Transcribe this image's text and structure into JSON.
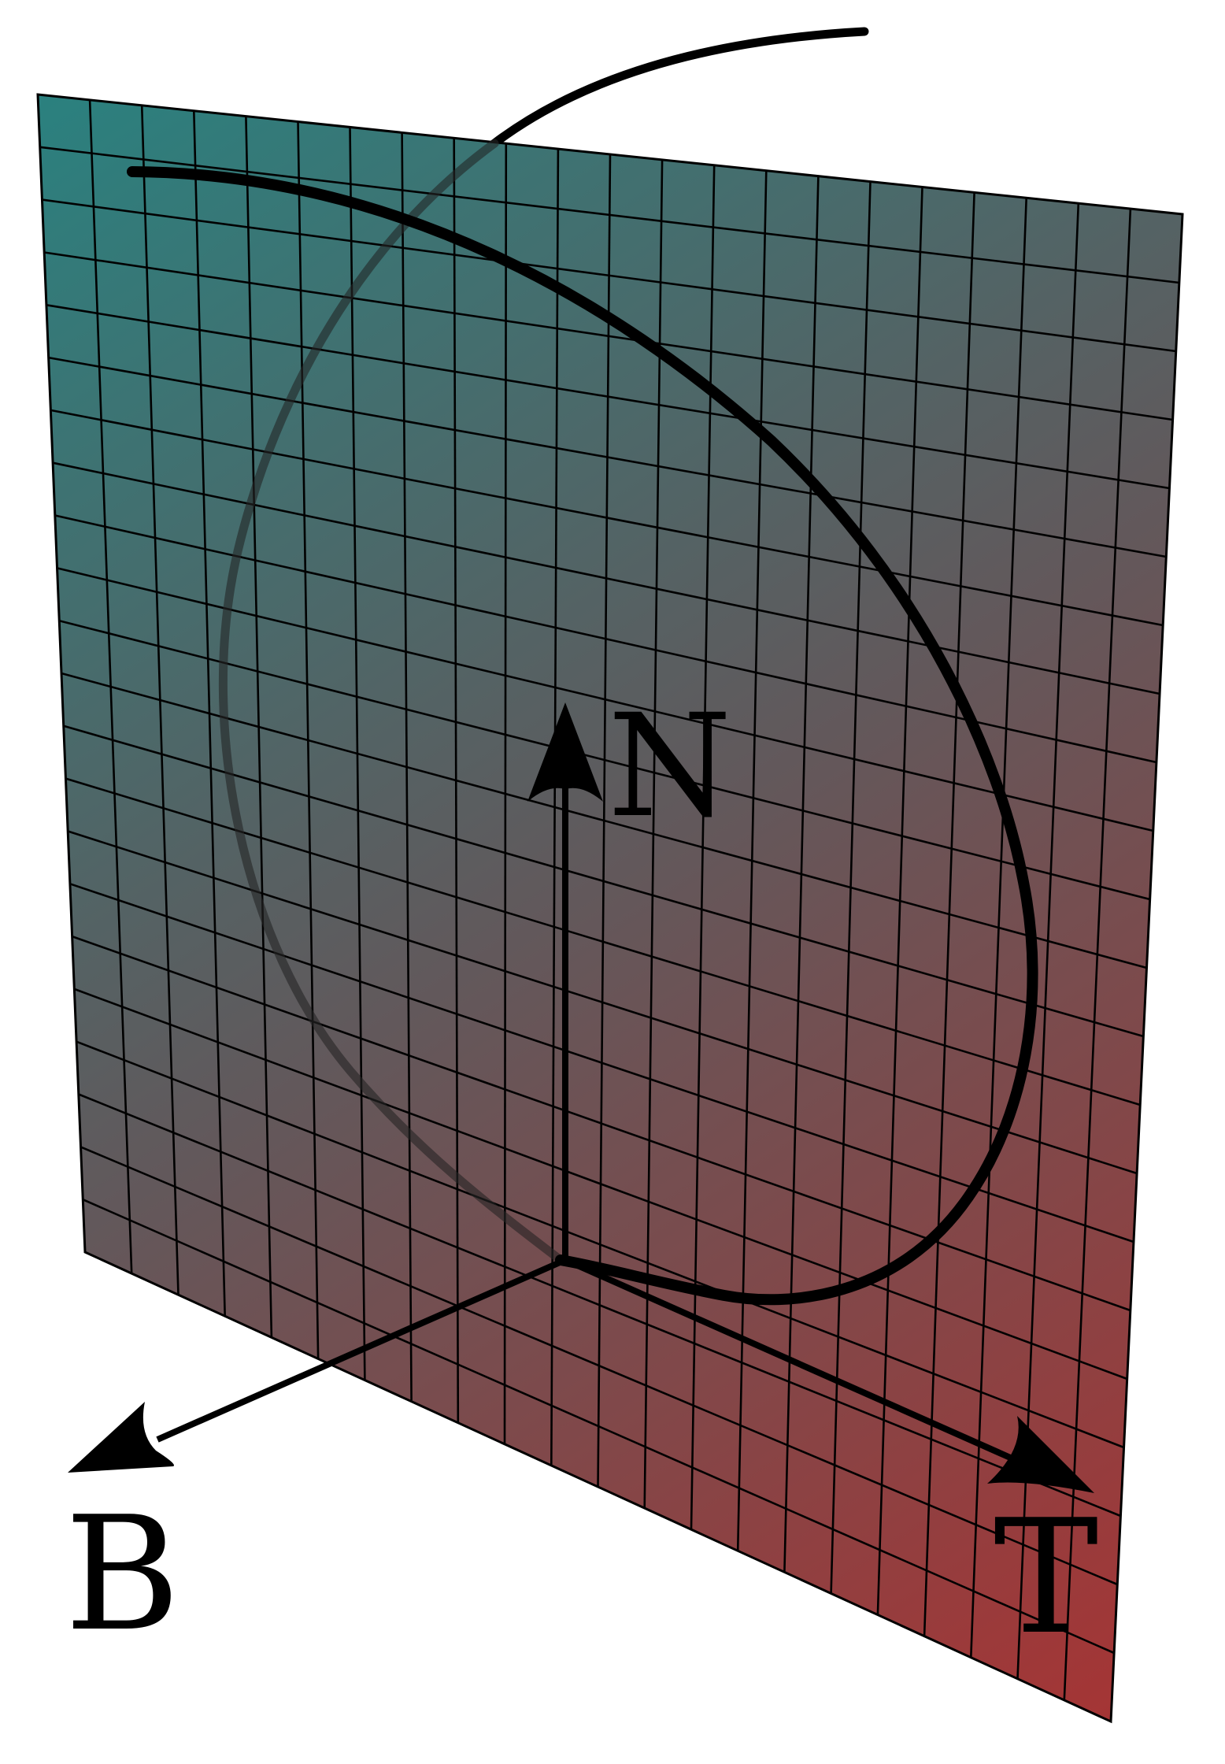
{
  "labels": {
    "normal": "N",
    "binormal": "B",
    "tangent": "T"
  },
  "colors": {
    "plane_top_left": "#1f7a78",
    "plane_mid": "#5a4f52",
    "plane_bottom_right": "#a02a2a",
    "grid_line": "#000000",
    "curve": "#000000",
    "arrow": "#000000",
    "background": "#ffffff"
  },
  "plane": {
    "grid_columns": 22,
    "grid_rows": 22
  }
}
